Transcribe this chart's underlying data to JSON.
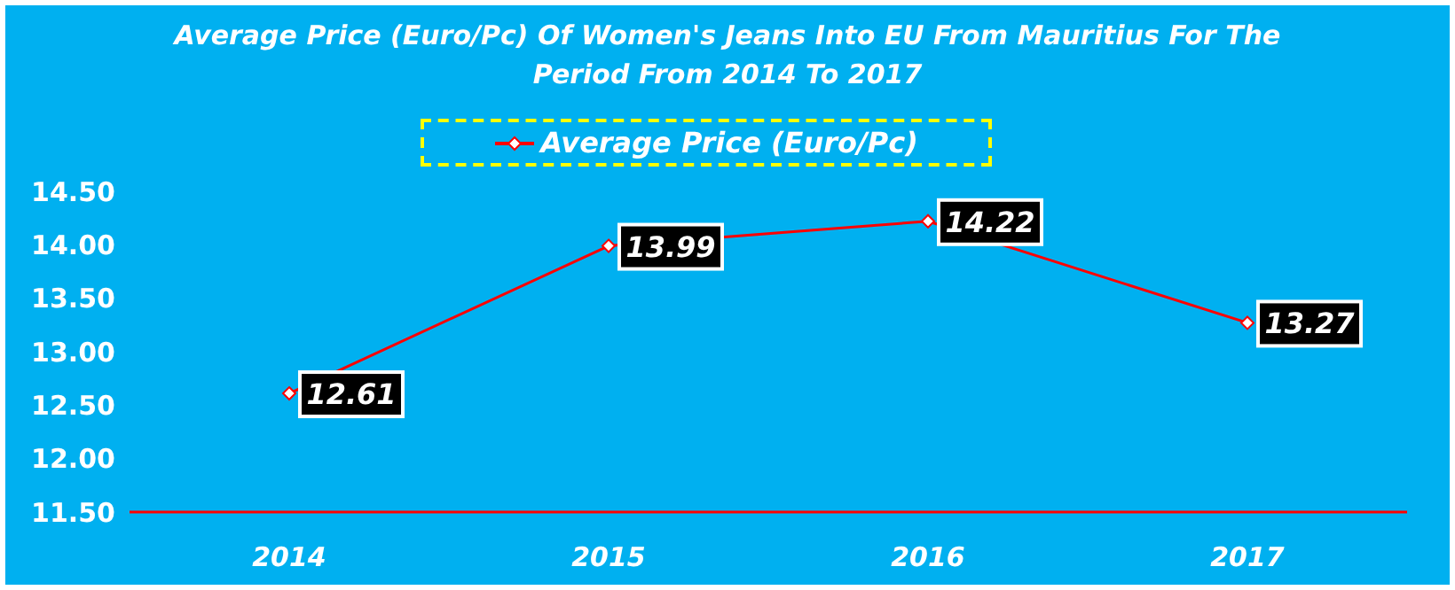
{
  "chart_data": {
    "type": "line",
    "title": "Average Price (Euro/Pc) Of Women's Jeans Into EU From Mauritius For The Period From 2014 To 2017",
    "categories": [
      "2014",
      "2015",
      "2016",
      "2017"
    ],
    "series": [
      {
        "name": "Average Price (Euro/Pc)",
        "color": "#ff0000",
        "values": [
          12.61,
          13.99,
          14.22,
          13.27
        ]
      }
    ],
    "ylim": [
      11.5,
      14.5
    ],
    "yticks": [
      {
        "value": 11.5,
        "label": "11.50"
      },
      {
        "value": 12,
        "label": "12.00"
      },
      {
        "value": 12.5,
        "label": "12.50"
      },
      {
        "value": 13,
        "label": "13.00"
      },
      {
        "value": 13.5,
        "label": "13.50"
      },
      {
        "value": 14,
        "label": "14.00"
      },
      {
        "value": 14.5,
        "label": "14.50"
      }
    ],
    "grid": false,
    "legend": "top",
    "marker": "diamond",
    "line_style": "solid",
    "data_labels": true
  }
}
